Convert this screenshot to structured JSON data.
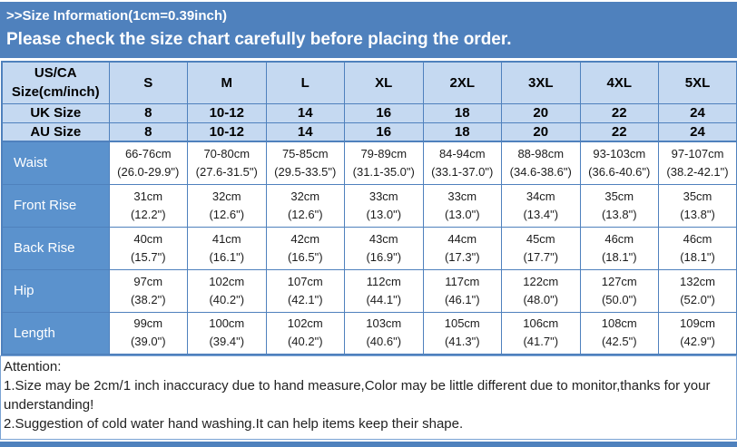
{
  "banner": {
    "line1": ">>Size Information(1cm=0.39inch)",
    "line2": "Please check the size chart carefully before placing the order."
  },
  "colors": {
    "banner_blue": "#4f81bd",
    "light_blue": "#c5d9f1",
    "label_blue": "#5b92cd",
    "border_blue": "#4f81bd"
  },
  "size_chart": {
    "header": [
      "US/CA Size(cm/inch)",
      "S",
      "M",
      "L",
      "XL",
      "2XL",
      "3XL",
      "4XL",
      "5XL"
    ],
    "simple_rows": [
      {
        "label": "UK Size",
        "values": [
          "8",
          "10-12",
          "14",
          "16",
          "18",
          "20",
          "22",
          "24"
        ]
      },
      {
        "label": "AU Size",
        "values": [
          "8",
          "10-12",
          "14",
          "16",
          "18",
          "20",
          "22",
          "24"
        ]
      }
    ],
    "measurement_rows": [
      {
        "label": "Waist",
        "cm": [
          "66-76cm",
          "70-80cm",
          "75-85cm",
          "79-89cm",
          "84-94cm",
          "88-98cm",
          "93-103cm",
          "97-107cm"
        ],
        "inch": [
          "(26.0-29.9\")",
          "(27.6-31.5\")",
          "(29.5-33.5\")",
          "(31.1-35.0\")",
          "(33.1-37.0\")",
          "(34.6-38.6\")",
          "(36.6-40.6\")",
          "(38.2-42.1\")"
        ]
      },
      {
        "label": "Front Rise",
        "cm": [
          "31cm",
          "32cm",
          "32cm",
          "33cm",
          "33cm",
          "34cm",
          "35cm",
          "35cm"
        ],
        "inch": [
          "(12.2\")",
          "(12.6\")",
          "(12.6\")",
          "(13.0\")",
          "(13.0\")",
          "(13.4\")",
          "(13.8\")",
          "(13.8\")"
        ]
      },
      {
        "label": "Back Rise",
        "cm": [
          "40cm",
          "41cm",
          "42cm",
          "43cm",
          "44cm",
          "45cm",
          "46cm",
          "46cm"
        ],
        "inch": [
          "(15.7\")",
          "(16.1\")",
          "(16.5\")",
          "(16.9\")",
          "(17.3\")",
          "(17.7\")",
          "(18.1\")",
          "(18.1\")"
        ]
      },
      {
        "label": "Hip",
        "cm": [
          "97cm",
          "102cm",
          "107cm",
          "112cm",
          "117cm",
          "122cm",
          "127cm",
          "132cm"
        ],
        "inch": [
          "(38.2\")",
          "(40.2\")",
          "(42.1\")",
          "(44.1\")",
          "(46.1\")",
          "(48.0\")",
          "(50.0\")",
          "(52.0\")"
        ]
      },
      {
        "label": "Length",
        "cm": [
          "99cm",
          "100cm",
          "102cm",
          "103cm",
          "105cm",
          "106cm",
          "108cm",
          "109cm"
        ],
        "inch": [
          "(39.0\")",
          "(39.4\")",
          "(40.2\")",
          "(40.6\")",
          "(41.3\")",
          "(41.7\")",
          "(42.5\")",
          "(42.9\")"
        ]
      }
    ]
  },
  "attention": {
    "title": "Attention:",
    "items": [
      "1.Size may be 2cm/1 inch inaccuracy due to hand measure,Color may be little different due to monitor,thanks for your understanding!",
      "2.Suggestion of cold water hand washing.It can help items keep their shape."
    ]
  }
}
